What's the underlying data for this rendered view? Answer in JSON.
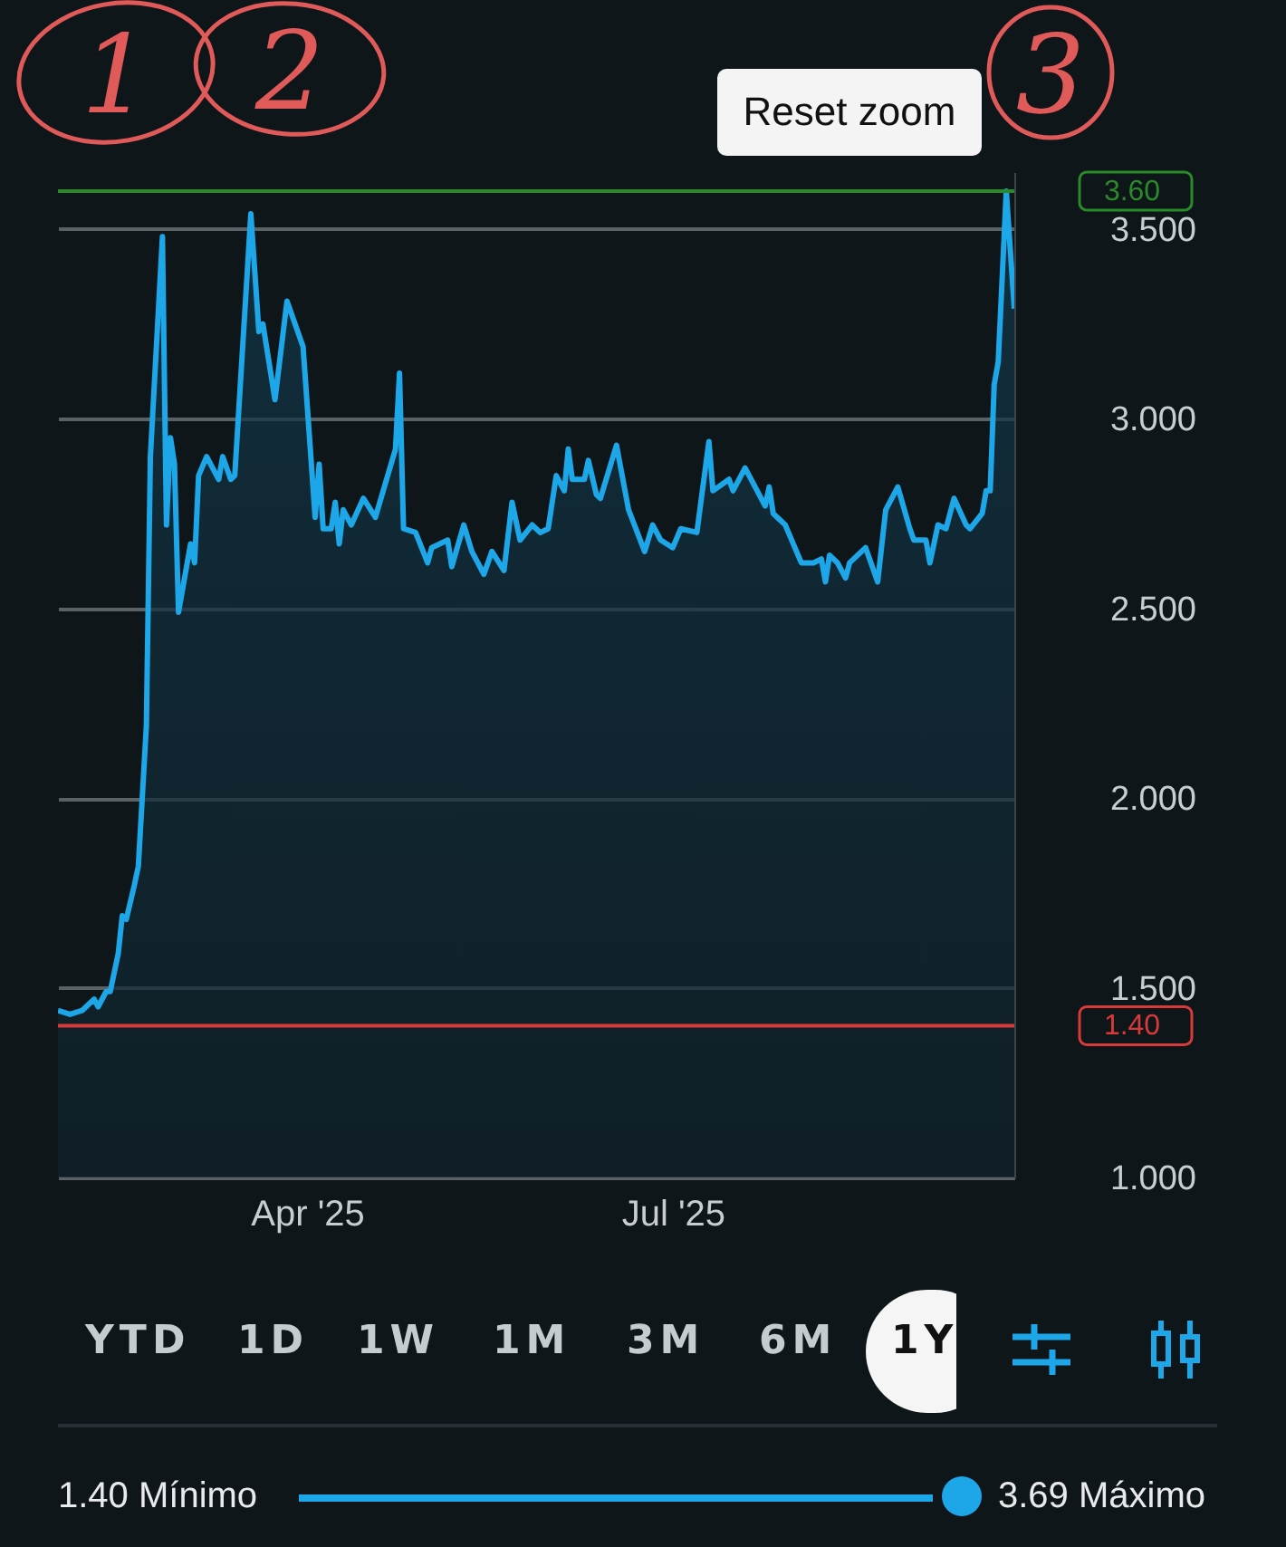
{
  "chart_data": {
    "type": "area",
    "x": [
      "2025-01-29",
      "2025-02-01",
      "2025-02-04",
      "2025-02-07",
      "2025-02-08",
      "2025-02-10",
      "2025-02-11",
      "2025-02-13",
      "2025-02-14",
      "2025-02-15",
      "2025-02-17",
      "2025-02-18",
      "2025-02-20",
      "2025-02-21",
      "2025-02-24",
      "2025-02-25",
      "2025-02-26",
      "2025-02-27",
      "2025-02-28",
      "2025-03-03",
      "2025-03-04",
      "2025-03-05",
      "2025-03-07",
      "2025-03-10",
      "2025-03-11",
      "2025-03-13",
      "2025-03-14",
      "2025-03-18",
      "2025-03-20",
      "2025-03-21",
      "2025-03-24",
      "2025-03-27",
      "2025-03-31",
      "2025-04-03",
      "2025-04-04",
      "2025-04-05",
      "2025-04-07",
      "2025-04-08",
      "2025-04-09",
      "2025-04-10",
      "2025-04-12",
      "2025-04-15",
      "2025-04-18",
      "2025-04-23",
      "2025-04-24",
      "2025-04-25",
      "2025-04-28",
      "2025-05-01",
      "2025-05-02",
      "2025-05-06",
      "2025-05-07",
      "2025-05-10",
      "2025-05-12",
      "2025-05-15",
      "2025-05-17",
      "2025-05-20",
      "2025-05-22",
      "2025-05-24",
      "2025-05-27",
      "2025-05-29",
      "2025-05-31",
      "2025-06-02",
      "2025-06-04",
      "2025-06-05",
      "2025-06-06",
      "2025-06-09",
      "2025-06-10",
      "2025-06-12",
      "2025-06-13",
      "2025-06-17",
      "2025-06-20",
      "2025-06-24",
      "2025-06-26",
      "2025-06-28",
      "2025-07-01",
      "2025-07-03",
      "2025-07-07",
      "2025-07-10",
      "2025-07-11",
      "2025-07-15",
      "2025-07-16",
      "2025-07-19",
      "2025-07-24",
      "2025-07-25",
      "2025-07-26",
      "2025-07-29",
      "2025-08-02",
      "2025-08-05",
      "2025-08-07",
      "2025-08-08",
      "2025-08-09",
      "2025-08-11",
      "2025-08-13",
      "2025-08-14",
      "2025-08-18",
      "2025-08-21",
      "2025-08-23",
      "2025-08-26",
      "2025-08-29",
      "2025-08-30",
      "2025-09-02",
      "2025-09-03",
      "2025-09-05",
      "2025-09-07",
      "2025-09-09",
      "2025-09-12",
      "2025-09-13",
      "2025-09-16",
      "2025-09-17",
      "2025-09-18",
      "2025-09-19",
      "2025-09-20",
      "2025-09-22",
      "2025-09-24"
    ],
    "series": [
      {
        "color": "#1ea7e8",
        "values": [
          1.44,
          1.43,
          1.44,
          1.47,
          1.45,
          1.49,
          1.49,
          1.59,
          1.69,
          1.68,
          1.77,
          1.82,
          2.19,
          2.9,
          3.48,
          2.72,
          2.95,
          2.88,
          2.49,
          2.67,
          2.62,
          2.85,
          2.9,
          2.84,
          2.9,
          2.84,
          2.85,
          3.54,
          3.23,
          3.25,
          3.05,
          3.31,
          3.19,
          2.74,
          2.88,
          2.71,
          2.71,
          2.78,
          2.67,
          2.76,
          2.72,
          2.79,
          2.74,
          2.92,
          3.12,
          2.71,
          2.7,
          2.62,
          2.66,
          2.68,
          2.61,
          2.72,
          2.65,
          2.59,
          2.65,
          2.6,
          2.78,
          2.68,
          2.72,
          2.7,
          2.71,
          2.85,
          2.81,
          2.92,
          2.84,
          2.84,
          2.89,
          2.8,
          2.79,
          2.93,
          2.76,
          2.65,
          2.72,
          2.68,
          2.66,
          2.71,
          2.7,
          2.94,
          2.81,
          2.84,
          2.81,
          2.87,
          2.77,
          2.82,
          2.75,
          2.72,
          2.62,
          2.62,
          2.63,
          2.57,
          2.64,
          2.62,
          2.58,
          2.62,
          2.66,
          2.57,
          2.76,
          2.82,
          2.71,
          2.68,
          2.68,
          2.62,
          2.72,
          2.71,
          2.79,
          2.72,
          2.71,
          2.75,
          2.81,
          2.81,
          3.09,
          3.15,
          3.6,
          3.29
        ]
      }
    ],
    "xlim": [
      "2025-01-29",
      "2025-09-24"
    ],
    "xticks": [
      {
        "value": "2025-04-01",
        "label": "Apr '25"
      },
      {
        "value": "2025-07-01",
        "label": "Jul '25"
      }
    ],
    "ylim": [
      1.0,
      3.65
    ],
    "yticks": [
      {
        "value": 1,
        "label": "1.000"
      },
      {
        "value": 1.5,
        "label": "1.500"
      },
      {
        "value": 2,
        "label": "2.000"
      },
      {
        "value": 2.5,
        "label": "2.500"
      },
      {
        "value": 3,
        "label": "3.000"
      },
      {
        "value": 3.5,
        "label": "3.500"
      }
    ],
    "grid": "y",
    "ref_lines": [
      {
        "axis": "y",
        "value": 3.6,
        "label": "3.60",
        "color": "#2a8a2a"
      },
      {
        "axis": "y",
        "value": 1.4,
        "label": "1.40",
        "color": "#d83a3a"
      }
    ],
    "annotations": [
      "1",
      "2",
      "3",
      "Reset zoom",
      "YTD",
      "1D",
      "1W",
      "1M",
      "3M",
      "6M",
      "1Y",
      "1.40 Mínimo",
      "3.69 Máximo"
    ]
  }
}
